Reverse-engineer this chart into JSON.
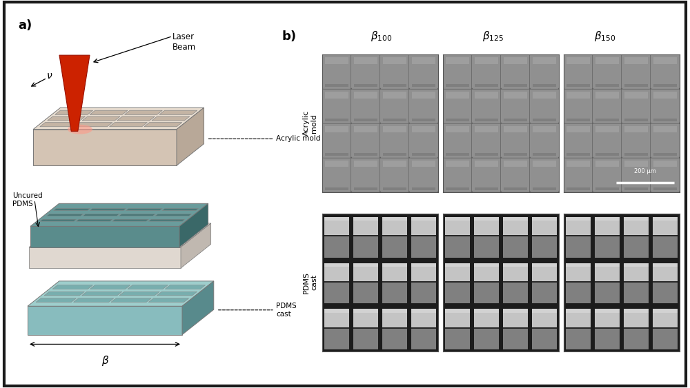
{
  "fig_width": 10.0,
  "fig_height": 5.63,
  "dpi": 100,
  "background_color": "#ffffff",
  "border_color": "#1a1a1a",
  "label_a": "a)",
  "label_b": "b)",
  "laser_label": "Laser\nBeam",
  "pdms_label": "Uncured\nPDMS",
  "cast_label": "PDMS\ncast",
  "acrylic_label": "Acrylic mold",
  "beta_label": "β",
  "v_label": "ν",
  "col_labels_latex": [
    "$\\beta_{100}$",
    "$\\beta_{125}$",
    "$\\beta_{150}$"
  ],
  "row_label_top": "Acrylic\nmold",
  "row_label_bot": "PDMS\ncast",
  "scale_bar_label": "200 µm",
  "acrylic_face": "#d4c4b4",
  "acrylic_top": "#e8ddd0",
  "acrylic_side": "#b8a898",
  "acrylic_cell": "#c4b4a4",
  "pdms_face": "#5a8c8c",
  "pdms_top": "#6a9c9c",
  "pdms_side": "#3a6868",
  "pdms_cell": "#4a7878",
  "base_face": "#e0d8d0",
  "base_top": "#eee8e0",
  "base_side": "#c0b8b0",
  "cast_face": "#88bcbe",
  "cast_top": "#9ececc",
  "cast_side": "#588a8c",
  "cast_cell": "#78aeae",
  "laser_red": "#cc2200",
  "laser_tip": "#ee4422",
  "glow_color": "#ff9988",
  "sem_mold_bg": "#909090",
  "sem_cast_bg": "#707070",
  "sem_dark": "#1c1c1c",
  "sem_light": "#b8b8b8",
  "sem_mid": "#888888"
}
